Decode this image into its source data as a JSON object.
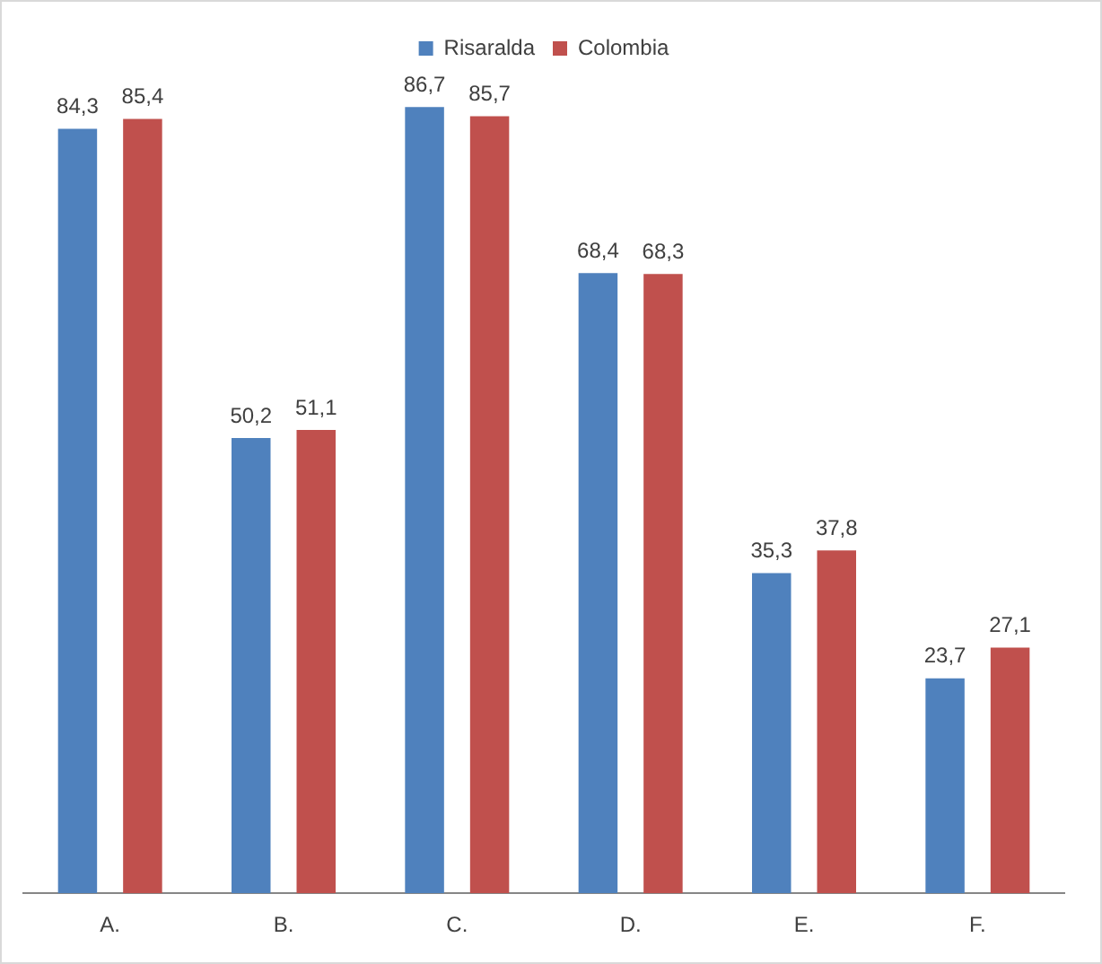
{
  "chart_data": {
    "type": "bar",
    "categories": [
      "A.",
      "B.",
      "C.",
      "D.",
      "E.",
      "F."
    ],
    "series": [
      {
        "name": "Risaralda",
        "color": "#4f81bd",
        "values": [
          84.3,
          50.2,
          86.7,
          68.4,
          35.3,
          23.7
        ],
        "value_labels": [
          "84,3",
          "50,2",
          "86,7",
          "68,4",
          "35,3",
          "23,7"
        ]
      },
      {
        "name": "Colombia",
        "color": "#c0504d",
        "values": [
          85.4,
          51.1,
          85.7,
          68.3,
          37.8,
          27.1
        ],
        "value_labels": [
          "85,4",
          "51,1",
          "85,7",
          "68,3",
          "37,8",
          "27,1"
        ]
      }
    ],
    "legend": "top",
    "grid": false
  }
}
